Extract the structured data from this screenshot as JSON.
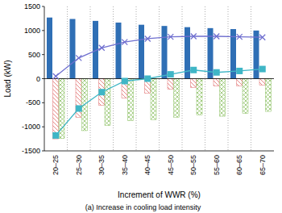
{
  "chart_data": {
    "type": "bar",
    "caption": "(a) Increase in cooling load intensity",
    "x_label": "Increment of WWR (%)",
    "y_label": "Load (kW)",
    "categories": [
      "20–25",
      "25–30",
      "30–35",
      "35–40",
      "40–45",
      "45–50",
      "50–55",
      "55–60",
      "60–65",
      "65–70"
    ],
    "ylim": [
      -1500,
      1500
    ],
    "yticks": [
      -1500,
      -1000,
      -500,
      0,
      500,
      1000,
      1500
    ],
    "grid": true,
    "series": [
      {
        "type": "bar",
        "color": "#2f6fb5",
        "values": [
          1270,
          1240,
          1200,
          1165,
          1120,
          1095,
          1070,
          1050,
          1030,
          1000
        ]
      },
      {
        "type": "bar",
        "color": "#e06a6a",
        "marker": "hatch",
        "values": [
          -1250,
          -800,
          -550,
          -400,
          -300,
          -220,
          -180,
          -150,
          -150,
          -130
        ]
      },
      {
        "type": "bar",
        "color": "#8cc063",
        "marker": "crosshatch",
        "values": [
          -1240,
          -1080,
          -970,
          -870,
          -850,
          -800,
          -750,
          -780,
          -720,
          -680
        ]
      },
      {
        "type": "line",
        "color": "#6f6fcf",
        "marker": "x",
        "values": [
          50,
          430,
          640,
          760,
          830,
          870,
          880,
          880,
          870,
          860
        ]
      },
      {
        "type": "line",
        "color": "#3fb6c6",
        "marker": "square",
        "values": [
          -1180,
          -620,
          -280,
          -50,
          0,
          90,
          180,
          130,
          160,
          200
        ]
      }
    ]
  }
}
